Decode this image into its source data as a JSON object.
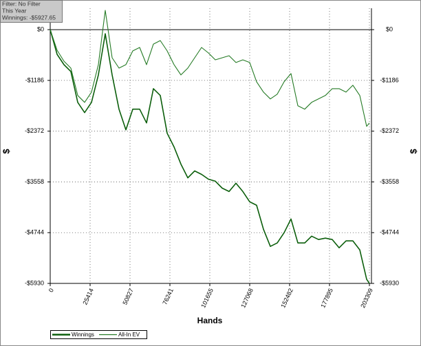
{
  "chart_data": {
    "type": "line",
    "annotations": [
      "Filter: No Filter",
      "This Year",
      "Winnings: -$5927.65"
    ],
    "xlabel": "Hands",
    "ylabel": "$",
    "x": [
      0,
      4382,
      8763,
      13145,
      17527,
      21909,
      26290,
      30672,
      35054,
      39435,
      43817,
      48199,
      52580,
      56962,
      61344,
      65726,
      70107,
      74489,
      78871,
      83252,
      87634,
      92016,
      96397,
      100779,
      105161,
      109543,
      113924,
      118306,
      122688,
      127069,
      131451,
      135833,
      140214,
      144596,
      148978,
      153360,
      157741,
      162123,
      166505,
      170886,
      175268,
      179650,
      184031,
      188413,
      192795,
      197177,
      201558,
      203309
    ],
    "series": [
      {
        "name": "Winnings",
        "color": "#0b5e0b",
        "values": [
          0,
          -577,
          -818,
          -978,
          -1699,
          -1939,
          -1699,
          -1058,
          -96,
          -1058,
          -1859,
          -2340,
          -1859,
          -1859,
          -2180,
          -1379,
          -1539,
          -2421,
          -2741,
          -3142,
          -3462,
          -3302,
          -3382,
          -3494,
          -3542,
          -3703,
          -3783,
          -3590,
          -3783,
          -4024,
          -4104,
          -4665,
          -5065,
          -4985,
          -4745,
          -4424,
          -4985,
          -4985,
          -4825,
          -4905,
          -4873,
          -4905,
          -5097,
          -4937,
          -4937,
          -5146,
          -5835,
          -5928
        ]
      },
      {
        "name": "All-In EV",
        "color": "#247a24",
        "values": [
          0,
          -481,
          -737,
          -898,
          -1539,
          -1699,
          -1459,
          -818,
          450,
          -657,
          -898,
          -818,
          -497,
          -417,
          -818,
          -337,
          -256,
          -497,
          -818,
          -1058,
          -898,
          -657,
          -417,
          -545,
          -705,
          -657,
          -609,
          -769,
          -705,
          -769,
          -1218,
          -1459,
          -1619,
          -1507,
          -1218,
          -1026,
          -1779,
          -1859,
          -1699,
          -1619,
          -1539,
          -1379,
          -1379,
          -1459,
          -1298,
          -1539,
          -2260,
          -2180
        ]
      }
    ],
    "xlim": [
      0,
      203309
    ],
    "xticks": [
      0,
      25414,
      50827,
      76241,
      101655,
      127068,
      152482,
      177895,
      203309
    ],
    "ylim": [
      -5930,
      500
    ],
    "yticks": [
      {
        "value": 0,
        "label": "$0"
      },
      {
        "value": -1186,
        "label": "-$1186"
      },
      {
        "value": -2372,
        "label": "-$2372"
      },
      {
        "value": -3558,
        "label": "-$3558"
      },
      {
        "value": -4744,
        "label": "-$4744"
      },
      {
        "value": -5930,
        "label": "-$5930"
      }
    ],
    "grid": true
  }
}
